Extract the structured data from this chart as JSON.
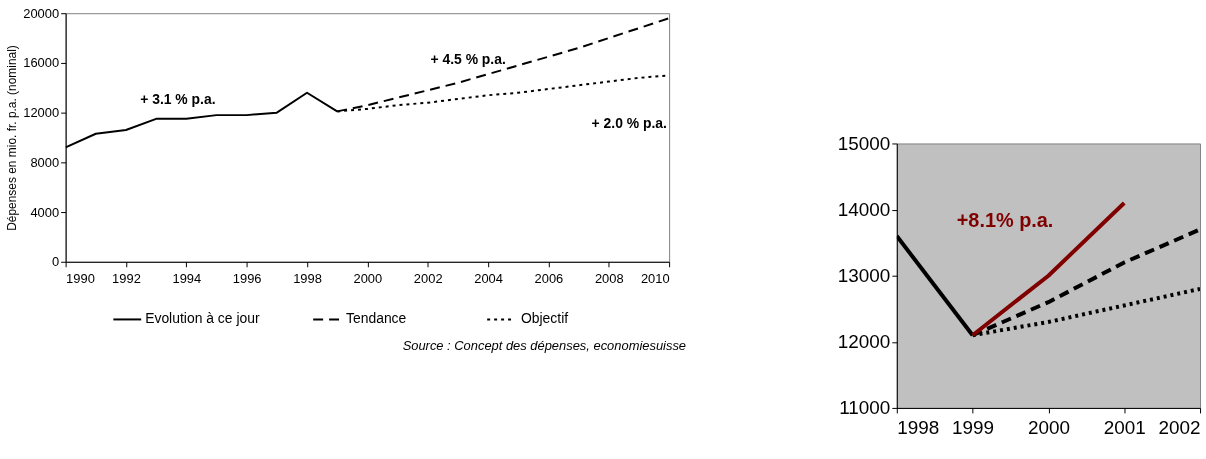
{
  "chart_data": [
    {
      "type": "line",
      "ylabel": "Dépenses  en mio. fr. p.a. (nominal)",
      "xlim": [
        1990,
        2010
      ],
      "xticks": [
        1990,
        1992,
        1994,
        1996,
        1998,
        2000,
        2002,
        2004,
        2006,
        2008,
        2010
      ],
      "ylim": [
        0,
        20000
      ],
      "yticks": [
        0,
        4000,
        8000,
        12000,
        16000,
        20000
      ],
      "grid": false,
      "legend": "bottom",
      "series": [
        {
          "name": "Evolution à ce jour",
          "color": "#000000",
          "line_style": "solid",
          "x": [
            1990,
            1991,
            1992,
            1993,
            1994,
            1995,
            1996,
            1997,
            1998,
            1999
          ],
          "values": [
            9200,
            10300,
            10600,
            11500,
            11500,
            11800,
            11800,
            12000,
            13600,
            12100
          ]
        },
        {
          "name": "Tendance",
          "color": "#000000",
          "line_style": "dashed",
          "x": [
            1999,
            2000,
            2001,
            2002,
            2003,
            2004,
            2005,
            2006,
            2007,
            2008,
            2009,
            2010
          ],
          "values": [
            12100,
            12600,
            13200,
            13800,
            14400,
            15100,
            15800,
            16500,
            17200,
            18000,
            18800,
            19600
          ]
        },
        {
          "name": "Objectif",
          "color": "#000000",
          "line_style": "dotted",
          "x": [
            1999,
            2000,
            2001,
            2002,
            2003,
            2004,
            2005,
            2006,
            2007,
            2008,
            2009,
            2010
          ],
          "values": [
            12100,
            12300,
            12600,
            12800,
            13100,
            13400,
            13600,
            13900,
            14200,
            14500,
            14800,
            15000
          ]
        }
      ],
      "annotations": [
        "+ 3.1 % p.a.",
        "+ 4.5 % p.a.",
        "+ 2.0 % p.a.",
        "Source : Concept des dépenses, economiesuisse"
      ]
    },
    {
      "type": "line",
      "xlim": [
        1998,
        2002
      ],
      "xticks": [
        1998,
        1999,
        2000,
        2001,
        2002
      ],
      "ylim": [
        11000,
        15000
      ],
      "yticks": [
        11000,
        12000,
        13000,
        14000,
        15000
      ],
      "grid": false,
      "legend": false,
      "series": [
        {
          "color": "#000000",
          "line_style": "solid",
          "x": [
            1998,
            1999
          ],
          "values": [
            13600,
            12100
          ]
        },
        {
          "color": "#000000",
          "line_style": "dashed",
          "x": [
            1999,
            2000,
            2001,
            2002
          ],
          "values": [
            12100,
            12600,
            13200,
            13700
          ]
        },
        {
          "color": "#000000",
          "line_style": "dotted",
          "x": [
            1999,
            2000,
            2001,
            2002
          ],
          "values": [
            12100,
            12300,
            12550,
            12800
          ]
        },
        {
          "color": "#800000",
          "line_style": "solid",
          "x": [
            1999,
            2000,
            2001
          ],
          "values": [
            12100,
            13000,
            14100
          ]
        }
      ],
      "annotations": [
        "+8.1% p.a."
      ]
    }
  ]
}
